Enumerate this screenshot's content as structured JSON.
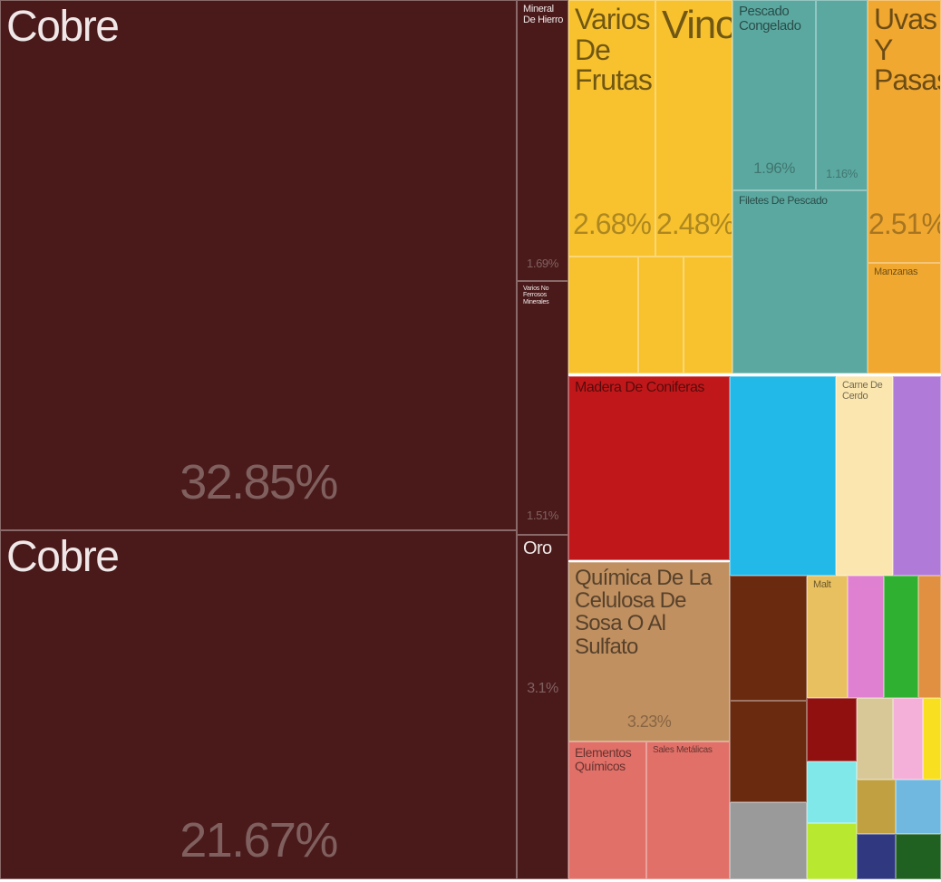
{
  "chart_data": {
    "type": "treemap",
    "items": [
      {
        "name": "Cobre",
        "value": 32.85,
        "value_label": "32.85%",
        "color": "#4a1a1a"
      },
      {
        "name": "Cobre",
        "value": 21.67,
        "value_label": "21.67%",
        "color": "#4a1a1a"
      },
      {
        "name": "Mineral De Hierro",
        "value": 1.69,
        "value_label": "1.69%",
        "color": "#4a1a1a"
      },
      {
        "name": "Varios No Ferrosos Minerales",
        "value": 1.51,
        "value_label": "1.51%",
        "color": "#4a1a1a"
      },
      {
        "name": "Oro",
        "value": 3.1,
        "value_label": "3.1%",
        "color": "#4a1a1a"
      },
      {
        "name": "Varios De Frutas",
        "value": 2.68,
        "value_label": "2.68%",
        "color": "#f8c22e"
      },
      {
        "name": "Vino",
        "value": 2.48,
        "value_label": "2.48%",
        "color": "#f8c22e"
      },
      {
        "name": "Pescado Congelado",
        "value": 1.96,
        "value_label": "1.96%",
        "color": "#5ba8a0"
      },
      {
        "name": null,
        "value": 1.16,
        "value_label": "1.16%",
        "color": "#5ba8a0"
      },
      {
        "name": "Filetes De Pescado",
        "color": "#5ba8a0"
      },
      {
        "name": "Uvas Y Pasas",
        "value": 2.51,
        "value_label": "2.51%",
        "color": "#f0a830"
      },
      {
        "name": "Manzanas",
        "color": "#f0a830"
      },
      {
        "name": "Madera De Coniferas",
        "color": "#c0181a"
      },
      {
        "name": "Carne De Cerdo",
        "color": "#fbe6b0"
      },
      {
        "name": "Química De La Celulosa De Sosa O Al Sulfato",
        "value": 3.23,
        "value_label": "3.23%",
        "color": "#c09060"
      },
      {
        "name": "Elementos Químicos",
        "color": "#e07068"
      },
      {
        "name": "Sales Metálicas",
        "color": "#e07068"
      },
      {
        "name": "Malt",
        "color": "#e8c060"
      }
    ]
  }
}
